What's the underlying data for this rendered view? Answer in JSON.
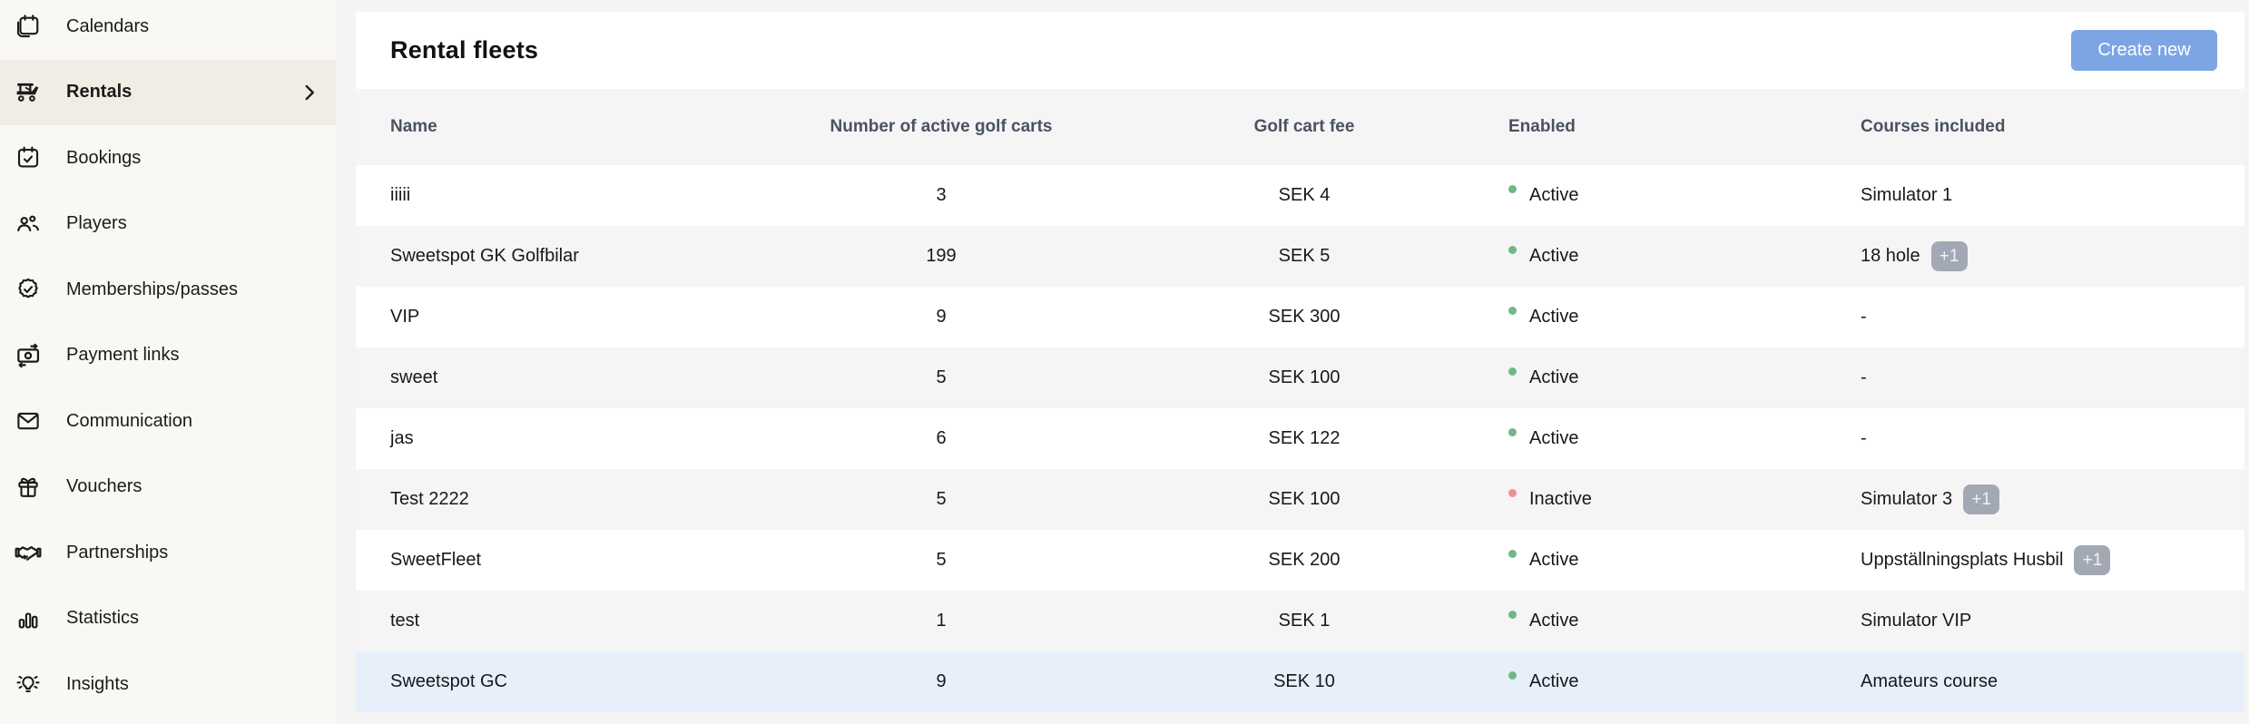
{
  "sidebar": {
    "items": [
      {
        "label": "Calendars",
        "icon": "calendar",
        "selected": false
      },
      {
        "label": "Rentals",
        "icon": "golf-cart",
        "selected": true
      },
      {
        "label": "Bookings",
        "icon": "calendar-check",
        "selected": false
      },
      {
        "label": "Players",
        "icon": "people",
        "selected": false
      },
      {
        "label": "Memberships/passes",
        "icon": "badge-check",
        "selected": false
      },
      {
        "label": "Payment links",
        "icon": "banknote",
        "selected": false
      },
      {
        "label": "Communication",
        "icon": "envelope",
        "selected": false
      },
      {
        "label": "Vouchers",
        "icon": "gift",
        "selected": false
      },
      {
        "label": "Partnerships",
        "icon": "handshake",
        "selected": false
      },
      {
        "label": "Statistics",
        "icon": "bar-chart",
        "selected": false
      },
      {
        "label": "Insights",
        "icon": "lightbulb",
        "selected": false
      }
    ]
  },
  "main": {
    "title": "Rental fleets",
    "create_button_label": "Create new",
    "table": {
      "columns": [
        "Name",
        "Number of active golf carts",
        "Golf cart fee",
        "Enabled",
        "Courses included"
      ],
      "rows": [
        {
          "name": "iiiii",
          "carts": "3",
          "fee": "SEK 4",
          "status": "Active",
          "courses": "Simulator 1",
          "badge": null,
          "highlighted": false
        },
        {
          "name": "Sweetspot GK Golfbilar",
          "carts": "199",
          "fee": "SEK 5",
          "status": "Active",
          "courses": "18 hole",
          "badge": "+1",
          "highlighted": false
        },
        {
          "name": "VIP",
          "carts": "9",
          "fee": "SEK 300",
          "status": "Active",
          "courses": "-",
          "badge": null,
          "highlighted": false
        },
        {
          "name": "sweet",
          "carts": "5",
          "fee": "SEK 100",
          "status": "Active",
          "courses": "-",
          "badge": null,
          "highlighted": false
        },
        {
          "name": "jas",
          "carts": "6",
          "fee": "SEK 122",
          "status": "Active",
          "courses": "-",
          "badge": null,
          "highlighted": false
        },
        {
          "name": "Test 2222",
          "carts": "5",
          "fee": "SEK 100",
          "status": "Inactive",
          "courses": "Simulator 3",
          "badge": "+1",
          "highlighted": false
        },
        {
          "name": "SweetFleet",
          "carts": "5",
          "fee": "SEK 200",
          "status": "Active",
          "courses": "Uppställningsplats Husbil",
          "badge": "+1",
          "highlighted": false
        },
        {
          "name": "test",
          "carts": "1",
          "fee": "SEK 1",
          "status": "Active",
          "courses": "Simulator VIP",
          "badge": null,
          "highlighted": false
        },
        {
          "name": "Sweetspot GC",
          "carts": "9",
          "fee": "SEK 10",
          "status": "Active",
          "courses": "Amateurs course",
          "badge": null,
          "highlighted": true
        }
      ]
    }
  },
  "colors": {
    "accent_button": "#7DA5E4",
    "status_active": "#71B787",
    "status_inactive": "#F09090",
    "badge_bg": "#A3A9B4",
    "highlight_row": "#E7F0FA",
    "sidebar_bg": "#FAF8F4",
    "sidebar_selected_bg": "#F0EDE5"
  }
}
